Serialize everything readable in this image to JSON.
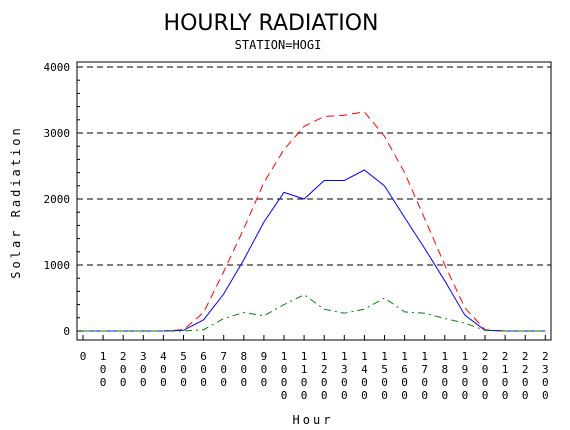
{
  "chart_data": {
    "type": "line",
    "title": "HOURLY RADIATION",
    "subtitle": "STATION=HOGI",
    "xlabel": "Hour",
    "ylabel": "Solar Radiation",
    "ylim": [
      0,
      4000
    ],
    "yticks": [
      "0",
      "1000",
      "2000",
      "3000",
      "4000"
    ],
    "ytick_values": [
      0,
      1000,
      2000,
      3000,
      4000
    ],
    "gridlines": "horizontal dashed at 1000, 2000, 3000, 4000",
    "categories": [
      "0",
      "100",
      "200",
      "300",
      "400",
      "500",
      "600",
      "700",
      "800",
      "900",
      "1000",
      "1100",
      "1200",
      "1300",
      "1400",
      "1500",
      "1600",
      "1700",
      "1800",
      "1900",
      "2000",
      "2100",
      "2200",
      "2300"
    ],
    "series": [
      {
        "color": "#ff0000",
        "style": "dashed",
        "values": [
          0,
          0,
          0,
          0,
          0,
          20,
          280,
          900,
          1550,
          2250,
          2750,
          3100,
          3250,
          3270,
          3320,
          2950,
          2400,
          1700,
          1000,
          350,
          20,
          0,
          0,
          0
        ]
      },
      {
        "color": "#0000ff",
        "style": "solid",
        "values": [
          0,
          0,
          0,
          0,
          0,
          10,
          170,
          560,
          1080,
          1650,
          2100,
          2000,
          2280,
          2280,
          2440,
          2200,
          1720,
          1250,
          760,
          240,
          10,
          0,
          0,
          0
        ]
      },
      {
        "color": "#008000",
        "style": "dash-dot",
        "values": [
          0,
          0,
          0,
          0,
          0,
          0,
          20,
          190,
          280,
          230,
          400,
          550,
          330,
          270,
          330,
          500,
          290,
          270,
          190,
          120,
          10,
          0,
          0,
          0
        ]
      }
    ]
  }
}
